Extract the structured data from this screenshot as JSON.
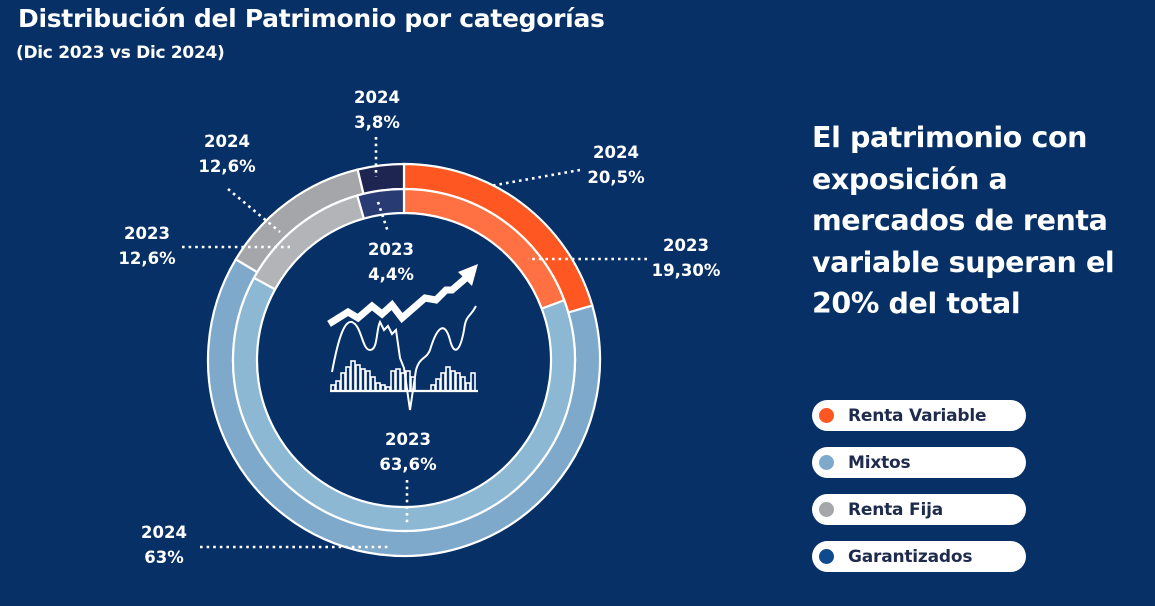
{
  "header": {
    "title": "Distribución del Patrimonio por categorías",
    "subtitle": "(Dic 2023 vs Dic 2024)"
  },
  "headline": "El patrimonio con exposición a mercados de renta variable superan el 20% del total",
  "colors": {
    "background": "#063066",
    "renta_variable_2024": "#FF5722",
    "renta_variable_2023": "#FF7043",
    "mixtos_2024": "#7EA9CB",
    "mixtos_2023": "#8DB8D4",
    "renta_fija_2024": "#A4A6A9",
    "renta_fija_2023": "#B2B4B7",
    "garantizados_2024": "#1E2550",
    "garantizados_2023": "#283B73",
    "separator": "#FFFFFF"
  },
  "legend": [
    {
      "label": "Renta Variable",
      "color": "#FF5722"
    },
    {
      "label": "Mixtos",
      "color": "#7EA9CB"
    },
    {
      "label": "Renta Fija",
      "color": "#A4A6A9"
    },
    {
      "label": "Garantizados",
      "color": "#0E4A8C"
    }
  ],
  "chart_data": {
    "type": "pie",
    "variant": "nested-donut",
    "title": "Distribución del Patrimonio por categorías",
    "subtitle": "(Dic 2023 vs Dic 2024)",
    "categories": [
      "Renta Variable",
      "Mixtos",
      "Renta Fija",
      "Garantizados"
    ],
    "series": [
      {
        "name": "2024",
        "ring": "outer",
        "values": [
          20.5,
          63,
          12.6,
          3.8
        ],
        "labels": [
          "20,5%",
          "63%",
          "12,6%",
          "3,8%"
        ],
        "colors": [
          "#FF5722",
          "#7EA9CB",
          "#A4A6A9",
          "#1E2550"
        ]
      },
      {
        "name": "2023",
        "ring": "inner",
        "values": [
          19.3,
          63.6,
          12.6,
          4.4
        ],
        "labels": [
          "19,30%",
          "63,6%",
          "12,6%",
          "4,4%"
        ],
        "colors": [
          "#FF7043",
          "#8DB8D4",
          "#B2B4B7",
          "#283B73"
        ]
      }
    ],
    "direction": "clockwise-from-top",
    "legend_position": "right",
    "center_icon": "stock-chart-rising-icon"
  }
}
